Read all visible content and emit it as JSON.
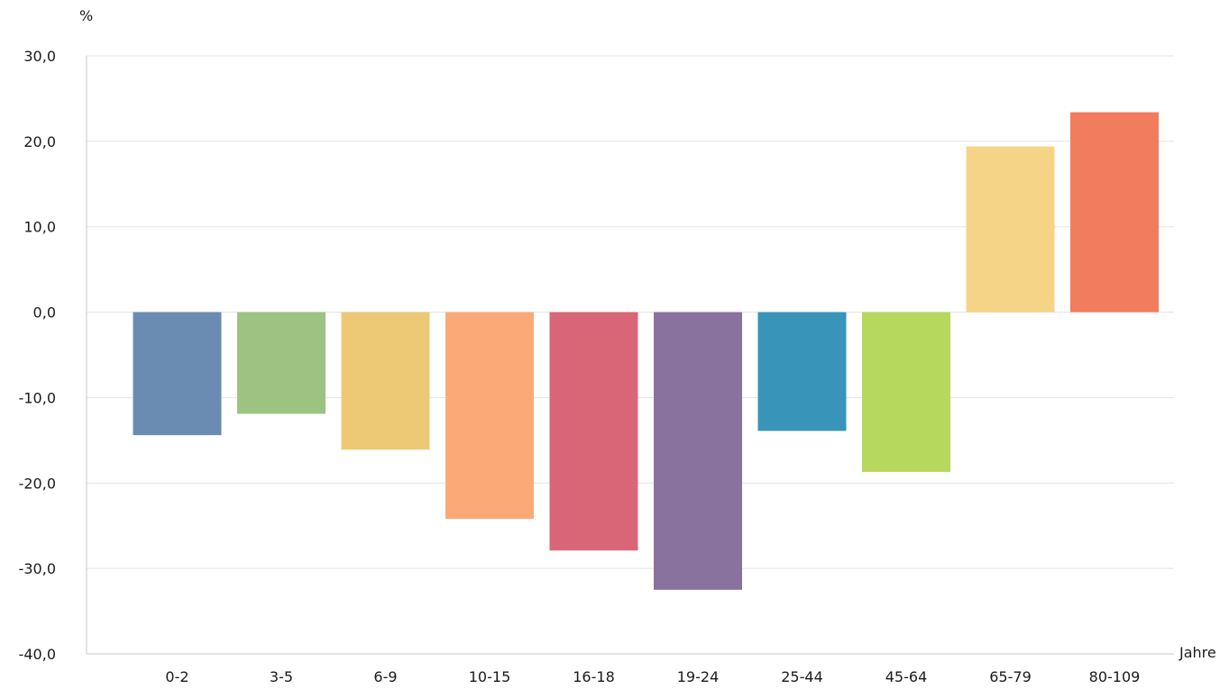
{
  "chart_data": {
    "type": "bar",
    "title": "",
    "ylabel": "%",
    "xlabel": "Jahre",
    "ylim": [
      -40,
      30
    ],
    "yticks": [
      30,
      20,
      10,
      0,
      -10,
      -20,
      -30,
      -40
    ],
    "ytick_labels": [
      "30,0",
      "20,0",
      "10,0",
      "0,0",
      "-10,0",
      "-20,0",
      "-30,0",
      "-40,0"
    ],
    "grid": true,
    "legend": "none",
    "categories": [
      "0-2",
      "3-5",
      "6-9",
      "10-15",
      "16-18",
      "19-24",
      "25-44",
      "45-64",
      "65-79",
      "80-109"
    ],
    "values": [
      -14.4,
      -11.9,
      -16.1,
      -24.2,
      -27.9,
      -32.5,
      -13.9,
      -18.7,
      19.4,
      23.4
    ],
    "colors": [
      "#6b8cb2",
      "#9dc383",
      "#edc976",
      "#fbaa77",
      "#d96677",
      "#89729e",
      "#3894b8",
      "#b5d85d",
      "#f5d488",
      "#f27c5e"
    ]
  }
}
